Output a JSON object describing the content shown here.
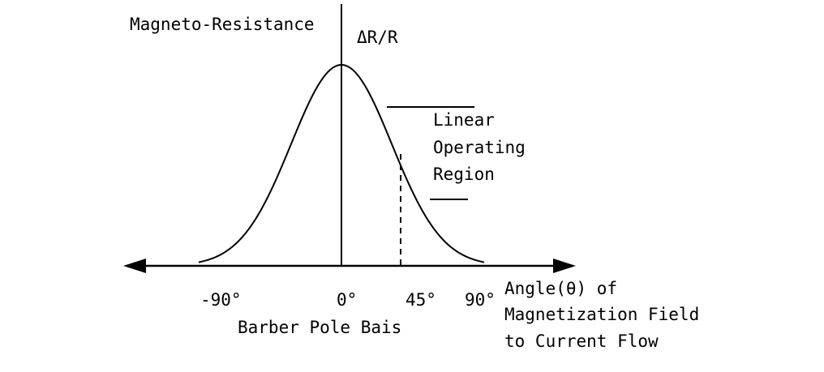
{
  "diagram": {
    "y_axis_title": "Magneto-Resistance",
    "y_axis_symbol": "ΔR/R",
    "x_ticks": [
      "-90°",
      "0°",
      "45°",
      "90°"
    ],
    "x_axis_title_lines": [
      "Angle(θ) of",
      "Magnetization Field",
      "to Current Flow"
    ],
    "bias_label": "Barber Pole Bais",
    "region_label_lines": [
      "Linear",
      "Operating",
      "Region"
    ]
  },
  "colors": {
    "ink": "#000000",
    "background": "#ffffff"
  }
}
